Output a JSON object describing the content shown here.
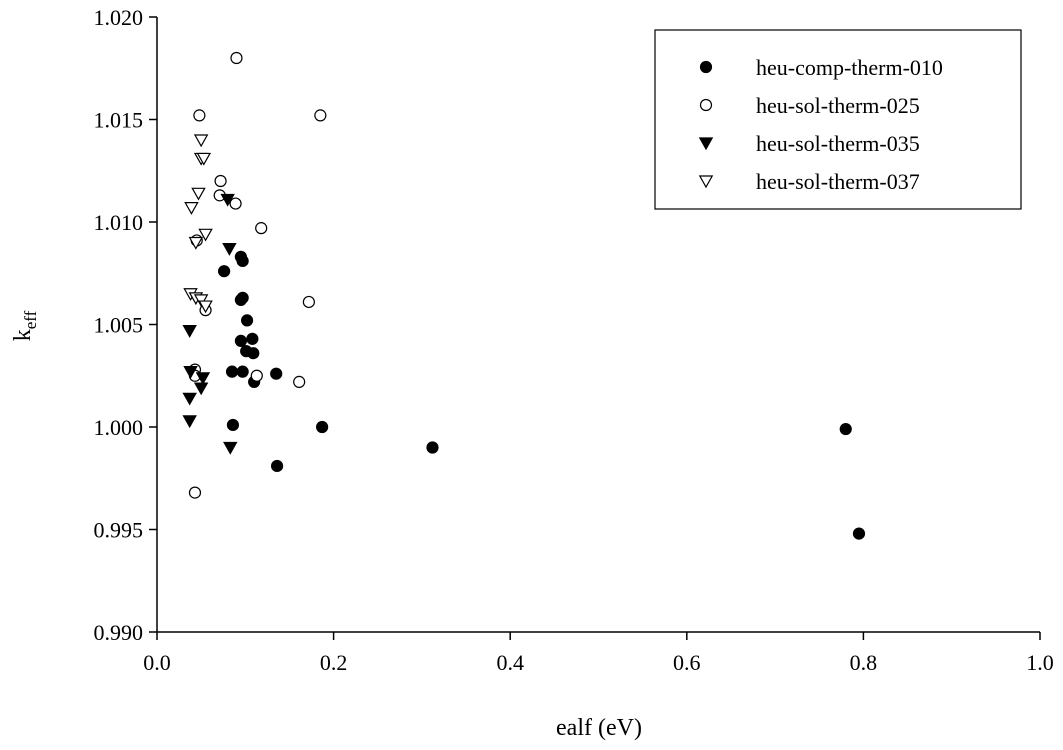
{
  "chart_data": {
    "type": "scatter",
    "title": "",
    "xlabel": "ealf (eV)",
    "ylabel": {
      "main": "k",
      "sub": "eff"
    },
    "xlim": [
      0.0,
      1.0
    ],
    "ylim": [
      0.99,
      1.02
    ],
    "x_ticks": [
      "0.0",
      "0.2",
      "0.4",
      "0.6",
      "0.8",
      "1.0"
    ],
    "y_ticks": [
      "0.990",
      "0.995",
      "1.000",
      "1.005",
      "1.010",
      "1.015",
      "1.020"
    ],
    "grid": false,
    "legend_position": "top-right",
    "series": [
      {
        "name": "heu-comp-therm-010",
        "marker": "circle-filled",
        "points": [
          [
            0.076,
            1.0076
          ],
          [
            0.095,
            1.0083
          ],
          [
            0.097,
            1.0081
          ],
          [
            0.097,
            1.0063
          ],
          [
            0.095,
            1.0062
          ],
          [
            0.102,
            1.0052
          ],
          [
            0.095,
            1.0042
          ],
          [
            0.108,
            1.0043
          ],
          [
            0.101,
            1.0037
          ],
          [
            0.109,
            1.0036
          ],
          [
            0.085,
            1.0027
          ],
          [
            0.097,
            1.0027
          ],
          [
            0.11,
            1.0022
          ],
          [
            0.135,
            1.0026
          ],
          [
            0.086,
            1.0001
          ],
          [
            0.187,
            1.0
          ],
          [
            0.136,
            0.9981
          ],
          [
            0.312,
            0.999
          ],
          [
            0.78,
            0.9999
          ],
          [
            0.795,
            0.9948
          ]
        ]
      },
      {
        "name": "heu-sol-therm-025",
        "marker": "circle-open",
        "points": [
          [
            0.09,
            1.018
          ],
          [
            0.048,
            1.0152
          ],
          [
            0.185,
            1.0152
          ],
          [
            0.072,
            1.012
          ],
          [
            0.071,
            1.0113
          ],
          [
            0.089,
            1.0109
          ],
          [
            0.118,
            1.0097
          ],
          [
            0.045,
            1.0091
          ],
          [
            0.172,
            1.0061
          ],
          [
            0.055,
            1.0057
          ],
          [
            0.043,
            1.0028
          ],
          [
            0.043,
            1.0025
          ],
          [
            0.113,
            1.0025
          ],
          [
            0.161,
            1.0022
          ],
          [
            0.043,
            0.9968
          ]
        ]
      },
      {
        "name": "heu-sol-therm-035",
        "marker": "triangle-filled",
        "points": [
          [
            0.08,
            1.0111
          ],
          [
            0.082,
            1.0087
          ],
          [
            0.037,
            1.0047
          ],
          [
            0.038,
            1.0027
          ],
          [
            0.052,
            1.0024
          ],
          [
            0.05,
            1.0019
          ],
          [
            0.037,
            1.0014
          ],
          [
            0.037,
            1.0003
          ],
          [
            0.083,
            0.999
          ]
        ]
      },
      {
        "name": "heu-sol-therm-037",
        "marker": "triangle-open",
        "points": [
          [
            0.05,
            1.014
          ],
          [
            0.05,
            1.0131
          ],
          [
            0.053,
            1.0131
          ],
          [
            0.047,
            1.0114
          ],
          [
            0.039,
            1.0107
          ],
          [
            0.055,
            1.0094
          ],
          [
            0.044,
            1.009
          ],
          [
            0.038,
            1.0065
          ],
          [
            0.044,
            1.0063
          ],
          [
            0.05,
            1.0062
          ],
          [
            0.055,
            1.0059
          ]
        ]
      }
    ]
  }
}
